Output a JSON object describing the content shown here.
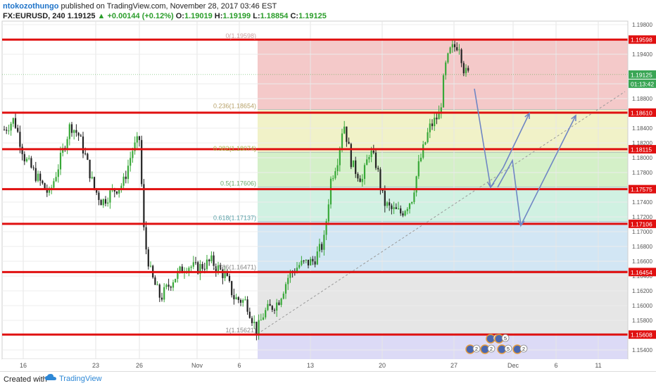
{
  "header": {
    "author": "ntokozothungo",
    "published": "published on TradingView.com, November 28, 2017 03:46 EST",
    "symbol": "FX:EURUSD, 240",
    "last": "1.19125",
    "change": "▲ +0.00144 (+0.12%)",
    "o_label": "O:",
    "o": "1.19019",
    "h_label": "H:",
    "h": "1.19199",
    "l_label": "L:",
    "l": "1.18854",
    "c_label": "C:",
    "c": "1.19125"
  },
  "footer": {
    "created": "Created with",
    "brand": "TradingView"
  },
  "colors": {
    "level_line": "#e01010",
    "candle_up": "#38a838",
    "candle_down": "#222222",
    "arrow": "#6f86c4",
    "zone_0": "#f4c9c9",
    "zone_236": "#f1f2c8",
    "zone_382": "#d4f0c8",
    "zone_5": "#d0f1e2",
    "zone_618": "#d2e6f4",
    "zone_786": "#e6e6e6",
    "zone_1": "#dcdaf6"
  },
  "chart_data": {
    "type": "candlestick",
    "symbol": "FX:EURUSD",
    "timeframe": "240",
    "ylim": [
      1.1525,
      1.1995
    ],
    "y_ticks": [
      "1.19800",
      "1.19400",
      "1.19000",
      "1.18800",
      "1.18400",
      "1.18200",
      "1.18000",
      "1.17800",
      "1.17400",
      "1.17200",
      "1.17000",
      "1.16800",
      "1.16600",
      "1.16400",
      "1.16200",
      "1.16000",
      "1.15800",
      "1.15400"
    ],
    "x_ticks": [
      "16",
      "23",
      "26",
      "Nov",
      "6",
      "13",
      "20",
      "27",
      "Dec",
      "6",
      "11"
    ],
    "price_labels": [
      {
        "value": 1.19598,
        "text": "1.19598"
      },
      {
        "value": 1.1861,
        "text": "1.18610"
      },
      {
        "value": 1.18115,
        "text": "1.18115"
      },
      {
        "value": 1.17575,
        "text": "1.17575"
      },
      {
        "value": 1.17106,
        "text": "1.17106"
      },
      {
        "value": 1.16454,
        "text": "1.16454"
      },
      {
        "value": 1.15608,
        "text": "1.15608"
      }
    ],
    "current_price": {
      "value": 1.19125,
      "text": "1.19125",
      "timer": "01:13:42"
    },
    "fib_levels": [
      {
        "text": "0(1.19598)",
        "value": 1.19598
      },
      {
        "text": "0.236(1.18654)",
        "value": 1.18654
      },
      {
        "text": "0.382(1.18074)",
        "value": 1.18074
      },
      {
        "text": "0.5(1.17606)",
        "value": 1.17606
      },
      {
        "text": "0.618(1.17137)",
        "value": 1.17137
      },
      {
        "text": "0.786(1.16471)",
        "value": 1.16471
      },
      {
        "text": "1(1.15621)",
        "value": 1.15621
      }
    ],
    "events": [
      {
        "text": "6"
      },
      {
        "text": "5"
      },
      {
        "text": "2"
      },
      {
        "text": "2"
      },
      {
        "text": "5"
      },
      {
        "text": "2"
      }
    ]
  }
}
